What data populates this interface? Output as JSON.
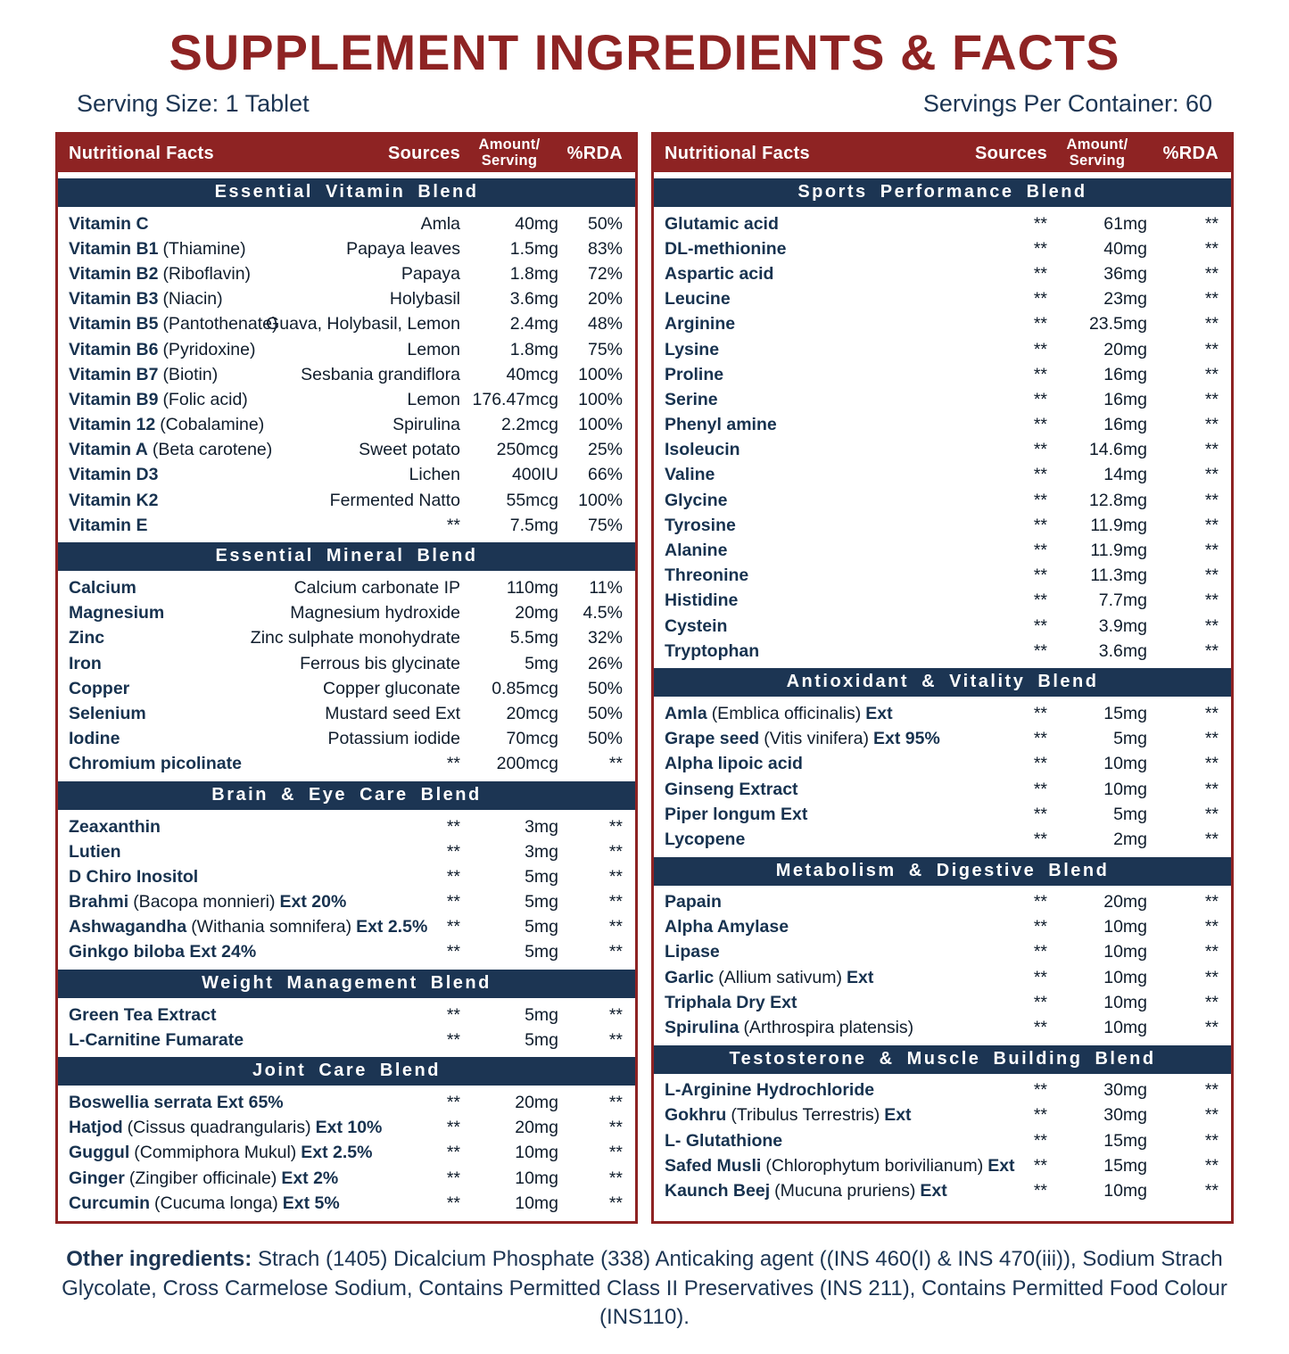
{
  "title": "SUPPLEMENT INGREDIENTS & FACTS",
  "serving_size": "Serving Size: 1 Tablet",
  "servings_per_container": "Servings Per Container: 60",
  "colors": {
    "red": "#8E2323",
    "navy": "#1C3553"
  },
  "table_header": {
    "col1": "Nutritional Facts",
    "col2": "Sources",
    "col3a": "Amount/",
    "col3b": "Serving",
    "col4": "%RDA"
  },
  "panels": [
    {
      "sections": [
        {
          "title": "Essential Vitamin Blend",
          "rows": [
            {
              "name": "Vitamin C",
              "source": "Amla",
              "amount": "40mg",
              "rda": "50%"
            },
            {
              "name": "Vitamin B1",
              "note": "(Thiamine)",
              "source": "Papaya leaves",
              "amount": "1.5mg",
              "rda": "83%"
            },
            {
              "name": "Vitamin B2",
              "note": "(Riboflavin)",
              "source": "Papaya",
              "amount": "1.8mg",
              "rda": "72%"
            },
            {
              "name": "Vitamin B3",
              "note": "(Niacin)",
              "source": "Holybasil",
              "amount": "3.6mg",
              "rda": "20%"
            },
            {
              "name": "Vitamin B5",
              "note": "(Pantothenate)",
              "source": "Guava, Holybasil, Lemon",
              "amount": "2.4mg",
              "rda": "48%"
            },
            {
              "name": "Vitamin B6",
              "note": "(Pyridoxine)",
              "source": "Lemon",
              "amount": "1.8mg",
              "rda": "75%"
            },
            {
              "name": "Vitamin B7",
              "note": "(Biotin)",
              "source": "Sesbania grandiflora",
              "amount": "40mcg",
              "rda": "100%"
            },
            {
              "name": "Vitamin B9",
              "note": "(Folic acid)",
              "source": "Lemon",
              "amount": "176.47mcg",
              "rda": "100%"
            },
            {
              "name": "Vitamin 12",
              "note": "(Cobalamine)",
              "source": "Spirulina",
              "amount": "2.2mcg",
              "rda": "100%"
            },
            {
              "name": "Vitamin A",
              "note": "(Beta carotene)",
              "source": "Sweet potato",
              "amount": "250mcg",
              "rda": "25%"
            },
            {
              "name": "Vitamin D3",
              "source": "Lichen",
              "amount": "400IU",
              "rda": "66%"
            },
            {
              "name": "Vitamin K2",
              "source": "Fermented Natto",
              "amount": "55mcg",
              "rda": "100%"
            },
            {
              "name": "Vitamin E",
              "source": "**",
              "amount": "7.5mg",
              "rda": "75%"
            }
          ]
        },
        {
          "title": "Essential Mineral Blend",
          "rows": [
            {
              "name": "Calcium",
              "source": "Calcium carbonate IP",
              "amount": "110mg",
              "rda": "11%"
            },
            {
              "name": "Magnesium",
              "source": "Magnesium hydroxide",
              "amount": "20mg",
              "rda": "4.5%"
            },
            {
              "name": "Zinc",
              "source": "Zinc sulphate monohydrate",
              "amount": "5.5mg",
              "rda": "32%"
            },
            {
              "name": "Iron",
              "source": "Ferrous bis glycinate",
              "amount": "5mg",
              "rda": "26%"
            },
            {
              "name": "Copper",
              "source": "Copper gluconate",
              "amount": "0.85mcg",
              "rda": "50%"
            },
            {
              "name": "Selenium",
              "source": "Mustard seed Ext",
              "amount": "20mcg",
              "rda": "50%"
            },
            {
              "name": "Iodine",
              "source": "Potassium iodide",
              "amount": "70mcg",
              "rda": "50%"
            },
            {
              "name": "Chromium picolinate",
              "source": "**",
              "amount": "200mcg",
              "rda": "**"
            }
          ]
        },
        {
          "title": "Brain & Eye Care Blend",
          "rows": [
            {
              "name": "Zeaxanthin",
              "source": "**",
              "amount": "3mg",
              "rda": "**"
            },
            {
              "name": "Lutien",
              "source": "**",
              "amount": "3mg",
              "rda": "**"
            },
            {
              "name": "D Chiro Inositol",
              "source": "**",
              "amount": "5mg",
              "rda": "**"
            },
            {
              "name": "Brahmi",
              "note": "(Bacopa monnieri)",
              "suffix": "Ext 20%",
              "source": "**",
              "amount": "5mg",
              "rda": "**"
            },
            {
              "name": "Ashwagandha",
              "note": "(Withania somnifera)",
              "suffix": "Ext 2.5%",
              "source": "**",
              "amount": "5mg",
              "rda": "**"
            },
            {
              "name": "Ginkgo biloba Ext 24%",
              "source": "**",
              "amount": "5mg",
              "rda": "**"
            }
          ]
        },
        {
          "title": "Weight Management Blend",
          "rows": [
            {
              "name": "Green Tea Extract",
              "source": "**",
              "amount": "5mg",
              "rda": "**"
            },
            {
              "name": "L-Carnitine Fumarate",
              "source": "**",
              "amount": "5mg",
              "rda": "**"
            }
          ]
        },
        {
          "title": "Joint Care Blend",
          "rows": [
            {
              "name": "Boswellia serrata Ext 65%",
              "source": "**",
              "amount": "20mg",
              "rda": "**"
            },
            {
              "name": "Hatjod",
              "note": "(Cissus quadrangularis)",
              "suffix": "Ext 10%",
              "source": "**",
              "amount": "20mg",
              "rda": "**"
            },
            {
              "name": "Guggul",
              "note": "(Commiphora Mukul)",
              "suffix": "Ext 2.5%",
              "source": "**",
              "amount": "10mg",
              "rda": "**"
            },
            {
              "name": "Ginger",
              "note": "(Zingiber officinale)",
              "suffix": "Ext 2%",
              "source": "**",
              "amount": "10mg",
              "rda": "**"
            },
            {
              "name": "Curcumin",
              "note": "(Cucuma longa)",
              "suffix": "Ext 5%",
              "source": "**",
              "amount": "10mg",
              "rda": "**"
            }
          ]
        }
      ]
    },
    {
      "sections": [
        {
          "title": "Sports Performance Blend",
          "rows": [
            {
              "name": "Glutamic acid",
              "source": "**",
              "amount": "61mg",
              "rda": "**"
            },
            {
              "name": "DL-methionine",
              "source": "**",
              "amount": "40mg",
              "rda": "**"
            },
            {
              "name": "Aspartic acid",
              "source": "**",
              "amount": "36mg",
              "rda": "**"
            },
            {
              "name": "Leucine",
              "source": "**",
              "amount": "23mg",
              "rda": "**"
            },
            {
              "name": "Arginine",
              "source": "**",
              "amount": "23.5mg",
              "rda": "**"
            },
            {
              "name": "Lysine",
              "source": "**",
              "amount": "20mg",
              "rda": "**"
            },
            {
              "name": "Proline",
              "source": "**",
              "amount": "16mg",
              "rda": "**"
            },
            {
              "name": "Serine",
              "source": "**",
              "amount": "16mg",
              "rda": "**"
            },
            {
              "name": "Phenyl amine",
              "source": "**",
              "amount": "16mg",
              "rda": "**"
            },
            {
              "name": "Isoleucin",
              "source": "**",
              "amount": "14.6mg",
              "rda": "**"
            },
            {
              "name": "Valine",
              "source": "**",
              "amount": "14mg",
              "rda": "**"
            },
            {
              "name": "Glycine",
              "source": "**",
              "amount": "12.8mg",
              "rda": "**"
            },
            {
              "name": "Tyrosine",
              "source": "**",
              "amount": "11.9mg",
              "rda": "**"
            },
            {
              "name": "Alanine",
              "source": "**",
              "amount": "11.9mg",
              "rda": "**"
            },
            {
              "name": "Threonine",
              "source": "**",
              "amount": "11.3mg",
              "rda": "**"
            },
            {
              "name": "Histidine",
              "source": "**",
              "amount": "7.7mg",
              "rda": "**"
            },
            {
              "name": "Cystein",
              "source": "**",
              "amount": "3.9mg",
              "rda": "**"
            },
            {
              "name": "Tryptophan",
              "source": "**",
              "amount": "3.6mg",
              "rda": "**"
            }
          ]
        },
        {
          "title": "Antioxidant & Vitality Blend",
          "rows": [
            {
              "name": "Amla",
              "note": "(Emblica officinalis)",
              "suffix": "Ext",
              "source": "**",
              "amount": "15mg",
              "rda": "**"
            },
            {
              "name": "Grape seed",
              "note": "(Vitis vinifera)",
              "suffix": "Ext 95%",
              "source": "**",
              "amount": "5mg",
              "rda": "**"
            },
            {
              "name": "Alpha lipoic acid",
              "source": "**",
              "amount": "10mg",
              "rda": "**"
            },
            {
              "name": "Ginseng Extract",
              "source": "**",
              "amount": "10mg",
              "rda": "**"
            },
            {
              "name": "Piper longum Ext",
              "source": "**",
              "amount": "5mg",
              "rda": "**"
            },
            {
              "name": "Lycopene",
              "source": "**",
              "amount": "2mg",
              "rda": "**"
            }
          ]
        },
        {
          "title": "Metabolism & Digestive Blend",
          "rows": [
            {
              "name": "Papain",
              "source": "**",
              "amount": "20mg",
              "rda": "**"
            },
            {
              "name": "Alpha Amylase",
              "source": "**",
              "amount": "10mg",
              "rda": "**"
            },
            {
              "name": "Lipase",
              "source": "**",
              "amount": "10mg",
              "rda": "**"
            },
            {
              "name": "Garlic",
              "note": "(Allium sativum)",
              "suffix": "Ext",
              "source": "**",
              "amount": "10mg",
              "rda": "**"
            },
            {
              "name": "Triphala Dry Ext",
              "source": "**",
              "amount": "10mg",
              "rda": "**"
            },
            {
              "name": "Spirulina",
              "note": "(Arthrospira platensis)",
              "source": "**",
              "amount": "10mg",
              "rda": "**"
            }
          ]
        },
        {
          "title": "Testosterone & Muscle Building Blend",
          "rows": [
            {
              "name": "L-Arginine Hydrochloride",
              "source": "**",
              "amount": "30mg",
              "rda": "**"
            },
            {
              "name": "Gokhru",
              "note": "(Tribulus Terrestris)",
              "suffix": "Ext",
              "source": "**",
              "amount": "30mg",
              "rda": "**"
            },
            {
              "name": "L- Glutathione",
              "source": "**",
              "amount": "15mg",
              "rda": "**"
            },
            {
              "name": "Safed Musli",
              "note": "(Chlorophytum borivilianum)",
              "suffix": "Ext",
              "source": "**",
              "amount": "15mg",
              "rda": "**"
            },
            {
              "name": "Kaunch Beej",
              "note": "(Mucuna pruriens)",
              "suffix": "Ext",
              "source": "**",
              "amount": "10mg",
              "rda": "**"
            }
          ]
        }
      ]
    }
  ],
  "footer": {
    "label": "Other ingredients:",
    "text": "Strach (1405) Dicalcium Phosphate (338) Anticaking agent ((INS 460(I) & INS 470(iii)), Sodium Strach Glycolate, Cross Carmelose Sodium, Contains Permitted Class II Preservatives (INS 211), Contains Permitted Food Colour (INS110)."
  }
}
